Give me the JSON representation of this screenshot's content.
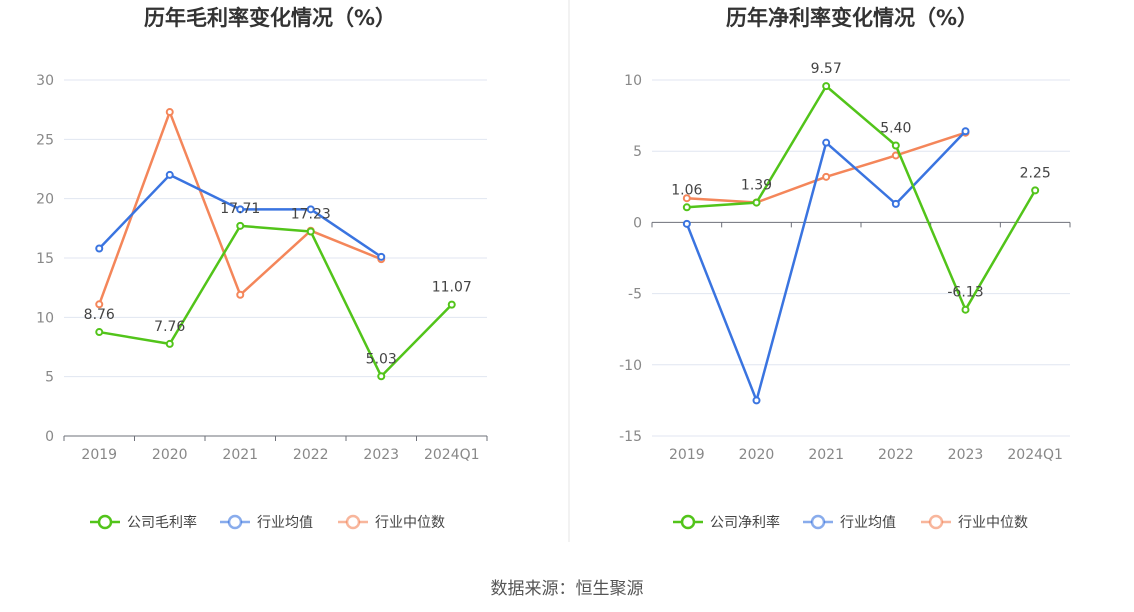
{
  "chart_data": [
    {
      "type": "line",
      "title": "历年毛利率变化情况（%）",
      "categories": [
        "2019",
        "2020",
        "2021",
        "2022",
        "2023",
        "2024Q1"
      ],
      "ylim": [
        0,
        30
      ],
      "yticks": [
        0,
        5,
        10,
        15,
        20,
        25,
        30
      ],
      "grid": true,
      "legend_position": "bottom",
      "series": [
        {
          "name": "公司毛利率",
          "color": "#52c41a",
          "values": [
            8.76,
            7.76,
            17.71,
            17.23,
            5.03,
            11.07
          ],
          "labels": [
            "8.76",
            "7.76",
            "17.71",
            "17.23",
            "5.03",
            "11.07"
          ]
        },
        {
          "name": "行业均值",
          "color": "#3a74e0",
          "values": [
            15.8,
            22.0,
            19.1,
            19.1,
            15.1,
            null
          ]
        },
        {
          "name": "行业中位数",
          "color": "#f4865a",
          "values": [
            11.1,
            27.3,
            11.9,
            17.3,
            14.9,
            null
          ]
        }
      ]
    },
    {
      "type": "line",
      "title": "历年净利率变化情况（%）",
      "categories": [
        "2019",
        "2020",
        "2021",
        "2022",
        "2023",
        "2024Q1"
      ],
      "ylim": [
        -15,
        10
      ],
      "yticks": [
        -15,
        -10,
        -5,
        0,
        5,
        10
      ],
      "grid": true,
      "legend_position": "bottom",
      "series": [
        {
          "name": "公司净利率",
          "color": "#52c41a",
          "values": [
            1.06,
            1.39,
            9.57,
            5.4,
            -6.13,
            2.25
          ],
          "labels": [
            "1.06",
            "1.39",
            "9.57",
            "5.40",
            "-6.13",
            "2.25"
          ]
        },
        {
          "name": "行业均值",
          "color": "#3a74e0",
          "values": [
            -0.1,
            -12.5,
            5.6,
            1.3,
            6.4,
            null
          ]
        },
        {
          "name": "行业中位数",
          "color": "#f4865a",
          "values": [
            1.7,
            1.4,
            3.2,
            4.7,
            6.3,
            null
          ]
        }
      ]
    }
  ],
  "source": "数据来源：恒生聚源"
}
